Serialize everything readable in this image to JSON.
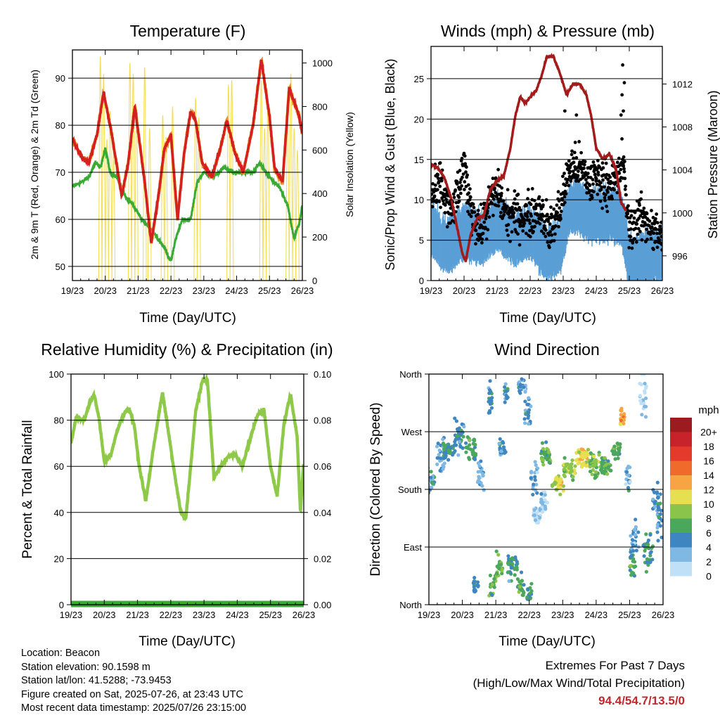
{
  "colors": {
    "temp_red": "#d42020",
    "temp_orange": "#f08c1c",
    "dewpoint_green": "#3aaa35",
    "solar_yellow": "#f3de5a",
    "gust_black": "#000000",
    "wind_blue": "#5b9fd6",
    "pressure_maroon": "#a31b1b",
    "rh_green": "#8ec94a",
    "precip_green": "#3aaa35",
    "extremes_red": "#c0282d"
  },
  "x_ticks": [
    "19/23",
    "20/23",
    "21/23",
    "22/23",
    "23/23",
    "24/23",
    "25/23",
    "26/23"
  ],
  "info": {
    "location": "Location: Beacon",
    "elevation": "Station elevation: 90.1598 m",
    "latlon": "Station lat/lon: 41.5288; -73.9453",
    "created": "Figure created on Sat, 2025-07-26, at 23:43 UTC",
    "recent": "Most recent data timestamp: 2025/07/26 23:15:00"
  },
  "extremes": {
    "title": "Extremes For Past 7 Days",
    "subtitle": "(High/Low/Max Wind/Total Precipitation)",
    "values": "94.4/54.7/13.5/0"
  },
  "chart_data": [
    {
      "type": "line",
      "title": "Temperature (F)",
      "xlabel": "Time (Day/UTC)",
      "ylabel": "2m & 9m T (Red, Orange) & 2m Td (Green)",
      "y2label": "Solar Insolation (Yellow)",
      "ylim": [
        47,
        96
      ],
      "y_ticks": [
        50,
        60,
        70,
        80,
        90
      ],
      "y2lim": [
        0,
        1060
      ],
      "y2_ticks": [
        0,
        200,
        400,
        600,
        800,
        1000
      ],
      "xlim": [
        0,
        7
      ],
      "grid": true,
      "series": [
        {
          "key": "temperature",
          "x": [
            0,
            0.3,
            0.5,
            0.75,
            0.95,
            1.2,
            1.5,
            1.7,
            1.9,
            2.2,
            2.4,
            2.6,
            2.8,
            3.0,
            3.2,
            3.4,
            3.6,
            3.75,
            3.95,
            4.25,
            4.5,
            4.7,
            4.95,
            5.2,
            5.5,
            5.75,
            6.0,
            6.15,
            6.4,
            6.6,
            6.75,
            6.9,
            7.0
          ],
          "y": [
            77,
            73,
            72,
            78,
            87,
            78,
            65,
            72,
            84,
            68,
            55,
            64,
            75,
            78,
            60,
            74,
            83,
            81,
            72,
            69,
            75,
            81,
            74,
            70,
            80,
            94,
            82,
            71,
            68,
            88,
            85,
            82,
            78
          ]
        },
        {
          "key": "dewpoint",
          "x": [
            0,
            0.3,
            0.5,
            0.7,
            0.85,
            1.0,
            1.15,
            1.35,
            1.6,
            1.85,
            2.1,
            2.4,
            2.6,
            2.8,
            3.0,
            3.15,
            3.35,
            3.6,
            3.8,
            4.0,
            4.3,
            4.6,
            4.9,
            5.2,
            5.5,
            5.7,
            5.9,
            6.1,
            6.3,
            6.55,
            6.75,
            6.9,
            7.0
          ],
          "y": [
            67,
            68,
            69,
            72,
            71,
            75,
            70,
            69,
            65,
            63,
            60,
            58,
            56,
            54,
            51,
            56,
            60,
            60,
            68,
            70,
            69,
            71,
            70,
            70,
            70,
            72,
            70,
            68,
            67,
            63,
            56,
            59,
            63
          ]
        },
        {
          "key": "solar",
          "peaks": [
            0.85,
            0.95,
            1.05,
            1.15,
            1.25,
            1.75,
            1.85,
            1.95,
            2.2,
            2.35,
            2.75,
            2.85,
            3.05,
            3.75,
            3.85,
            4.75,
            4.85,
            5.75,
            5.85,
            5.95,
            6.55,
            6.65,
            6.75,
            6.85
          ],
          "peak_values": [
            1030,
            950,
            650,
            780,
            580,
            1000,
            950,
            800,
            980,
            700,
            760,
            660,
            800,
            840,
            750,
            900,
            920,
            920,
            700,
            800,
            760,
            950,
            700,
            600
          ]
        }
      ]
    },
    {
      "type": "line",
      "title": "Winds (mph) & Pressure (mb)",
      "xlabel": "Time (Day/UTC)",
      "ylabel": "Sonic/Prop Wind & Gust (Blue, Black)",
      "y2label": "Station Pressure (Maroon)",
      "ylim": [
        0,
        29
      ],
      "y_ticks": [
        0,
        5,
        10,
        15,
        20,
        25
      ],
      "y2lim": [
        993.7,
        1015.5
      ],
      "y2_ticks": [
        996,
        1000,
        1004,
        1008,
        1012
      ],
      "xlim": [
        0,
        7
      ],
      "grid": true,
      "series": [
        {
          "key": "pressure",
          "x": [
            0,
            0.2,
            0.4,
            0.6,
            0.8,
            0.95,
            1.05,
            1.2,
            1.4,
            1.6,
            1.8,
            2.0,
            2.2,
            2.4,
            2.55,
            2.7,
            2.85,
            3.0,
            3.2,
            3.35,
            3.5,
            3.7,
            3.9,
            4.1,
            4.3,
            4.5,
            4.7,
            4.85,
            5.0,
            5.2,
            5.4,
            5.6,
            5.75,
            5.9
          ],
          "y": [
            1004.5,
            1004.2,
            1003.3,
            1001.5,
            998.5,
            996.2,
            995.5,
            998,
            999.5,
            999.8,
            1002.2,
            1003,
            1003.4,
            1006,
            1009,
            1010.8,
            1010.2,
            1010.8,
            1011.5,
            1012.8,
            1014.5,
            1014.6,
            1013,
            1011,
            1012,
            1012,
            1011,
            1009,
            1006,
            1005,
            1005.5,
            1004,
            1001,
            1000.2
          ]
        },
        {
          "key": "wind_mean",
          "anchors_x": [
            0,
            0.5,
            1.0,
            1.5,
            2.0,
            2.5,
            3.0,
            3.5,
            3.9,
            4.2,
            4.5,
            4.8,
            5.2,
            5.6,
            5.8,
            6.0,
            6.2,
            6.5,
            7.0
          ],
          "anchors_y": [
            6,
            4,
            6,
            5,
            7,
            5,
            6,
            3,
            4,
            9,
            9,
            8,
            8,
            8,
            7,
            2,
            2,
            3,
            3
          ]
        },
        {
          "key": "gust_mean",
          "anchors_x": [
            0,
            0.3,
            0.6,
            0.9,
            1.0,
            1.2,
            1.5,
            1.8,
            2.0,
            2.3,
            2.6,
            3.0,
            3.3,
            3.6,
            3.9,
            4.2,
            4.5,
            4.8,
            5.0,
            5.3,
            5.6,
            5.8,
            6.0,
            6.3,
            6.6,
            7.0
          ],
          "anchors_y": [
            10,
            12,
            8,
            12,
            14,
            9,
            6,
            10,
            11,
            8,
            8,
            8,
            9,
            6,
            9,
            14,
            14,
            12,
            13,
            12,
            12,
            15,
            6,
            8,
            7,
            5
          ]
        }
      ]
    },
    {
      "type": "line",
      "title": "Relative Humidity (%) & Precipitation (in)",
      "xlabel": "Time (Day/UTC)",
      "ylabel": "Percent & Total Rainfall",
      "ylim": [
        0,
        100
      ],
      "y_ticks": [
        0,
        20,
        40,
        60,
        80,
        100
      ],
      "y2lim": [
        0,
        0.1
      ],
      "y2_ticks": [
        "0.00",
        "0.02",
        "0.04",
        "0.06",
        "0.08",
        "0.10"
      ],
      "xlim": [
        0,
        7
      ],
      "grid": true,
      "series": [
        {
          "key": "rh",
          "x": [
            0,
            0.15,
            0.4,
            0.55,
            0.7,
            0.85,
            1.0,
            1.2,
            1.4,
            1.6,
            1.75,
            1.9,
            2.05,
            2.25,
            2.5,
            2.75,
            2.95,
            3.1,
            3.3,
            3.45,
            3.6,
            3.75,
            3.95,
            4.1,
            4.3,
            4.5,
            4.7,
            4.95,
            5.15,
            5.35,
            5.6,
            5.8,
            6.0,
            6.2,
            6.4,
            6.6,
            6.8,
            6.9,
            7.0
          ],
          "y": [
            70,
            81,
            80,
            87,
            91,
            80,
            62,
            65,
            76,
            83,
            85,
            78,
            60,
            45,
            70,
            92,
            73,
            58,
            40,
            37,
            60,
            84,
            97,
            98,
            55,
            60,
            64,
            65,
            60,
            70,
            82,
            85,
            60,
            47,
            78,
            91,
            73,
            40,
            63
          ]
        },
        {
          "key": "precip",
          "x": [
            0,
            7
          ],
          "y": [
            0,
            0
          ]
        }
      ]
    },
    {
      "type": "scatter",
      "title": "Wind Direction",
      "xlabel": "Time (Day/UTC)",
      "ylabel": "Direction (Colored By Speed)",
      "ylim": [
        0,
        360
      ],
      "y_ticks": [
        "North",
        "East",
        "South",
        "West",
        "North"
      ],
      "xlim": [
        0,
        7
      ],
      "grid": true,
      "legend_title": "mph",
      "legend": [
        "20+",
        "18",
        "16",
        "14",
        "12",
        "10",
        "8",
        "6",
        "4",
        "2",
        "0"
      ],
      "legend_colors": [
        "#9b1b1f",
        "#c8232b",
        "#e33a2c",
        "#f06a2b",
        "#f7a442",
        "#e6df4f",
        "#8bc44a",
        "#4aa75c",
        "#3f86c0",
        "#7fb8e3",
        "#bfe0f6"
      ],
      "series": [
        {
          "key": "direction",
          "clusters": [
            [
              0.05,
              195,
              0.25,
              25,
              4
            ],
            [
              0.35,
              230,
              0.25,
              40,
              3
            ],
            [
              0.6,
              240,
              0.35,
              25,
              5
            ],
            [
              0.9,
              265,
              0.3,
              40,
              4
            ],
            [
              1.25,
              245,
              0.3,
              30,
              6
            ],
            [
              1.4,
              30,
              0.15,
              20,
              4
            ],
            [
              1.55,
              200,
              0.2,
              40,
              2
            ],
            [
              1.9,
              30,
              0.2,
              25,
              7
            ],
            [
              1.85,
              320,
              0.15,
              40,
              4
            ],
            [
              2.1,
              60,
              0.2,
              30,
              7
            ],
            [
              2.2,
              245,
              0.2,
              30,
              4
            ],
            [
              2.3,
              330,
              0.15,
              30,
              4
            ],
            [
              2.5,
              60,
              0.3,
              30,
              5
            ],
            [
              2.75,
              30,
              0.2,
              25,
              6
            ],
            [
              2.8,
              340,
              0.25,
              20,
              3
            ],
            [
              2.95,
              300,
              0.2,
              30,
              3
            ],
            [
              3.0,
              20,
              0.15,
              20,
              6
            ],
            [
              3.15,
              200,
              0.2,
              40,
              3
            ],
            [
              3.25,
              140,
              0.25,
              25,
              1
            ],
            [
              3.45,
              160,
              0.2,
              30,
              1
            ],
            [
              3.5,
              235,
              0.3,
              25,
              6
            ],
            [
              3.85,
              190,
              0.35,
              25,
              9
            ],
            [
              4.2,
              210,
              0.35,
              25,
              8
            ],
            [
              4.6,
              230,
              0.4,
              25,
              10
            ],
            [
              5.0,
              220,
              0.4,
              25,
              7
            ],
            [
              5.3,
              215,
              0.3,
              20,
              6
            ],
            [
              5.6,
              240,
              0.25,
              20,
              6
            ],
            [
              5.8,
              290,
              0.15,
              30,
              12
            ],
            [
              5.95,
              200,
              0.15,
              40,
              3
            ],
            [
              6.1,
              60,
              0.2,
              35,
              6
            ],
            [
              6.15,
              100,
              0.25,
              40,
              3
            ],
            [
              6.4,
              330,
              0.2,
              60,
              1
            ],
            [
              6.55,
              80,
              0.3,
              60,
              5
            ],
            [
              6.8,
              170,
              0.25,
              40,
              4
            ],
            [
              6.9,
              130,
              0.15,
              40,
              4
            ]
          ]
        }
      ]
    }
  ]
}
